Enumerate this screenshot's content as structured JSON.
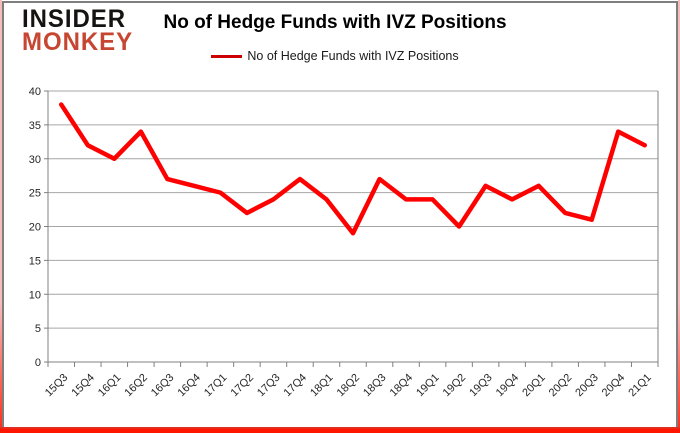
{
  "brand": {
    "line1": "INSIDER",
    "line2": "MONKEY",
    "monkey_color": "#c74632"
  },
  "chart_data": {
    "type": "line",
    "title": "No of Hedge Funds with IVZ Positions",
    "legend_label": "No of Hedge Funds with IVZ Positions",
    "legend_position": "top",
    "categories": [
      "15Q3",
      "15Q4",
      "16Q1",
      "16Q2",
      "16Q3",
      "16Q4",
      "17Q1",
      "17Q2",
      "17Q3",
      "17Q4",
      "18Q1",
      "18Q2",
      "18Q3",
      "18Q4",
      "19Q1",
      "19Q2",
      "19Q3",
      "19Q4",
      "20Q1",
      "20Q2",
      "20Q3",
      "20Q4",
      "21Q1"
    ],
    "series": [
      {
        "name": "No of Hedge Funds with IVZ Positions",
        "color": "#ff0000",
        "values": [
          38,
          32,
          30,
          34,
          27,
          26,
          25,
          22,
          24,
          27,
          24,
          19,
          27,
          24,
          24,
          20,
          26,
          24,
          26,
          22,
          21,
          34,
          32
        ]
      }
    ],
    "xlabel": "",
    "ylabel": "",
    "ylim": [
      0,
      40
    ],
    "ytick_step": 5,
    "grid": true,
    "grid_color": "#a6a6a6",
    "axis_color": "#808080",
    "legend_swatch_color": "#cc0000"
  },
  "frame_colors": {
    "border_gray": "#7e7e7e",
    "edge_pink": "#f6bcbc",
    "edge_red": "#ff1500"
  }
}
